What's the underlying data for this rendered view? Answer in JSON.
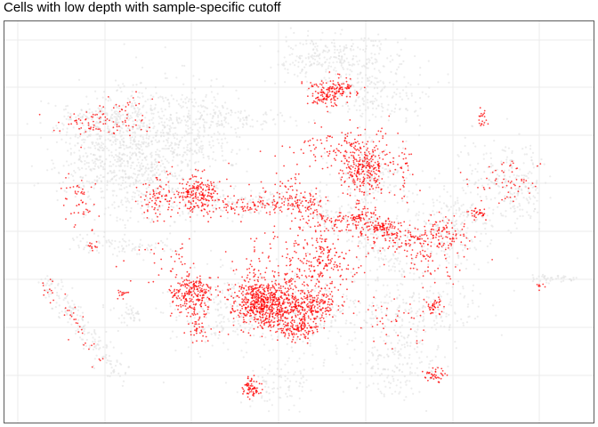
{
  "chart_data": {
    "type": "scatter",
    "title": "Cells with low depth with sample-specific cutoff",
    "xlabel": "",
    "ylabel": "",
    "grid": true,
    "tick_labels_visible": false,
    "colors": {
      "background_cells": "#dcdcdc",
      "highlighted_cells": "#ff0000",
      "grid": "#ebebeb",
      "panel_border": "#333333"
    },
    "series": [
      {
        "name": "",
        "color": "#dcdcdc",
        "role": "background",
        "clusters": [
          {
            "cx": 0.32,
            "cy": 0.27,
            "sx": 0.045,
            "sy": 0.06,
            "n": 300
          },
          {
            "cx": 0.23,
            "cy": 0.3,
            "sx": 0.045,
            "sy": 0.06,
            "n": 320
          },
          {
            "cx": 0.15,
            "cy": 0.35,
            "sx": 0.035,
            "sy": 0.05,
            "n": 220
          },
          {
            "cx": 0.24,
            "cy": 0.4,
            "sx": 0.05,
            "sy": 0.06,
            "n": 260
          },
          {
            "cx": 0.63,
            "cy": 0.17,
            "sx": 0.045,
            "sy": 0.05,
            "n": 220
          },
          {
            "cx": 0.62,
            "cy": 0.39,
            "sx": 0.03,
            "sy": 0.04,
            "n": 160
          },
          {
            "cx": 0.75,
            "cy": 0.5,
            "sx": 0.035,
            "sy": 0.05,
            "n": 200
          },
          {
            "cx": 0.7,
            "cy": 0.72,
            "sx": 0.06,
            "sy": 0.06,
            "n": 260
          },
          {
            "cx": 0.66,
            "cy": 0.86,
            "sx": 0.035,
            "sy": 0.04,
            "n": 150
          },
          {
            "cx": 0.36,
            "cy": 0.72,
            "sx": 0.045,
            "sy": 0.05,
            "n": 200
          },
          {
            "cx": 0.51,
            "cy": 0.73,
            "sx": 0.05,
            "sy": 0.05,
            "n": 220
          },
          {
            "cx": 0.57,
            "cy": 0.09,
            "sx": 0.04,
            "sy": 0.03,
            "n": 140
          },
          {
            "cx": 0.52,
            "cy": 0.09,
            "sx": 0.03,
            "sy": 0.03,
            "n": 100
          },
          {
            "cx": 0.84,
            "cy": 0.38,
            "sx": 0.035,
            "sy": 0.05,
            "n": 140
          },
          {
            "cx": 0.88,
            "cy": 0.42,
            "sx": 0.02,
            "sy": 0.05,
            "n": 100
          },
          {
            "cx": 0.18,
            "cy": 0.26,
            "sx": 0.05,
            "sy": 0.02,
            "n": 90
          },
          {
            "cx": 0.16,
            "cy": 0.24,
            "sx": 0.04,
            "sy": 0.02,
            "n": 80
          },
          {
            "cx": 0.39,
            "cy": 0.24,
            "sx": 0.06,
            "sy": 0.015,
            "n": 90
          },
          {
            "cx": 0.47,
            "cy": 0.9,
            "sx": 0.03,
            "sy": 0.03,
            "n": 90
          },
          {
            "cx": 0.21,
            "cy": 0.73,
            "sx": 0.015,
            "sy": 0.02,
            "n": 40
          },
          {
            "cx": 0.22,
            "cy": 0.19,
            "sx": 0.015,
            "sy": 0.04,
            "n": 40
          }
        ],
        "streaks": [
          {
            "x1": 0.06,
            "y1": 0.63,
            "x2": 0.2,
            "y2": 0.88,
            "n": 180,
            "w": 0.012
          },
          {
            "x1": 0.12,
            "y1": 0.55,
            "x2": 0.3,
            "y2": 0.57,
            "n": 90,
            "w": 0.012
          },
          {
            "x1": 0.3,
            "y1": 0.45,
            "x2": 0.55,
            "y2": 0.45,
            "n": 160,
            "w": 0.018
          },
          {
            "x1": 0.52,
            "y1": 0.47,
            "x2": 0.72,
            "y2": 0.56,
            "n": 140,
            "w": 0.018
          },
          {
            "x1": 0.9,
            "y1": 0.64,
            "x2": 0.96,
            "y2": 0.64,
            "n": 40,
            "w": 0.006
          },
          {
            "x1": 0.6,
            "y1": 0.55,
            "x2": 0.68,
            "y2": 0.62,
            "n": 60,
            "w": 0.015
          }
        ]
      },
      {
        "name": "",
        "color": "#ff0000",
        "role": "highlight",
        "clusters": [
          {
            "cx": 0.45,
            "cy": 0.71,
            "sx": 0.025,
            "sy": 0.03,
            "n": 420
          },
          {
            "cx": 0.42,
            "cy": 0.69,
            "sx": 0.02,
            "sy": 0.025,
            "n": 200
          },
          {
            "cx": 0.32,
            "cy": 0.68,
            "sx": 0.018,
            "sy": 0.025,
            "n": 240
          },
          {
            "cx": 0.52,
            "cy": 0.71,
            "sx": 0.022,
            "sy": 0.02,
            "n": 200
          },
          {
            "cx": 0.5,
            "cy": 0.76,
            "sx": 0.018,
            "sy": 0.015,
            "n": 150
          },
          {
            "cx": 0.61,
            "cy": 0.37,
            "sx": 0.022,
            "sy": 0.03,
            "n": 260
          },
          {
            "cx": 0.33,
            "cy": 0.43,
            "sx": 0.02,
            "sy": 0.025,
            "n": 220
          },
          {
            "cx": 0.56,
            "cy": 0.17,
            "sx": 0.02,
            "sy": 0.015,
            "n": 120
          },
          {
            "cx": 0.54,
            "cy": 0.19,
            "sx": 0.012,
            "sy": 0.012,
            "n": 60
          },
          {
            "cx": 0.42,
            "cy": 0.91,
            "sx": 0.007,
            "sy": 0.012,
            "n": 70
          },
          {
            "cx": 0.73,
            "cy": 0.88,
            "sx": 0.01,
            "sy": 0.008,
            "n": 40
          },
          {
            "cx": 0.73,
            "cy": 0.71,
            "sx": 0.008,
            "sy": 0.01,
            "n": 40
          },
          {
            "cx": 0.8,
            "cy": 0.48,
            "sx": 0.006,
            "sy": 0.008,
            "n": 20
          },
          {
            "cx": 0.75,
            "cy": 0.53,
            "sx": 0.02,
            "sy": 0.02,
            "n": 80
          },
          {
            "cx": 0.81,
            "cy": 0.24,
            "sx": 0.004,
            "sy": 0.012,
            "n": 20
          },
          {
            "cx": 0.64,
            "cy": 0.51,
            "sx": 0.01,
            "sy": 0.005,
            "n": 30
          },
          {
            "cx": 0.6,
            "cy": 0.49,
            "sx": 0.006,
            "sy": 0.005,
            "n": 20
          },
          {
            "cx": 0.2,
            "cy": 0.68,
            "sx": 0.005,
            "sy": 0.006,
            "n": 15
          },
          {
            "cx": 0.91,
            "cy": 0.66,
            "sx": 0.004,
            "sy": 0.004,
            "n": 8
          },
          {
            "cx": 0.15,
            "cy": 0.56,
            "sx": 0.004,
            "sy": 0.008,
            "n": 12
          },
          {
            "cx": 0.81,
            "cy": 0.48,
            "sx": 0.004,
            "sy": 0.004,
            "n": 10
          },
          {
            "cx": 0.26,
            "cy": 0.44,
            "sx": 0.015,
            "sy": 0.03,
            "n": 80
          },
          {
            "cx": 0.48,
            "cy": 0.63,
            "sx": 0.05,
            "sy": 0.05,
            "n": 220
          },
          {
            "cx": 0.55,
            "cy": 0.59,
            "sx": 0.03,
            "sy": 0.03,
            "n": 80
          },
          {
            "cx": 0.33,
            "cy": 0.76,
            "sx": 0.01,
            "sy": 0.02,
            "n": 40
          },
          {
            "cx": 0.18,
            "cy": 0.26,
            "sx": 0.05,
            "sy": 0.015,
            "n": 60
          },
          {
            "cx": 0.85,
            "cy": 0.41,
            "sx": 0.03,
            "sy": 0.03,
            "n": 60
          },
          {
            "cx": 0.13,
            "cy": 0.45,
            "sx": 0.015,
            "sy": 0.04,
            "n": 50
          },
          {
            "cx": 0.68,
            "cy": 0.37,
            "sx": 0.01,
            "sy": 0.03,
            "n": 30
          },
          {
            "cx": 0.58,
            "cy": 0.31,
            "sx": 0.04,
            "sy": 0.03,
            "n": 120
          },
          {
            "cx": 0.65,
            "cy": 0.54,
            "sx": 0.03,
            "sy": 0.02,
            "n": 60
          },
          {
            "cx": 0.66,
            "cy": 0.74,
            "sx": 0.03,
            "sy": 0.03,
            "n": 40
          },
          {
            "cx": 0.72,
            "cy": 0.58,
            "sx": 0.03,
            "sy": 0.04,
            "n": 80
          },
          {
            "cx": 0.28,
            "cy": 0.58,
            "sx": 0.03,
            "sy": 0.04,
            "n": 40
          }
        ],
        "streaks": [
          {
            "x1": 0.38,
            "y1": 0.46,
            "x2": 0.53,
            "y2": 0.45,
            "n": 160,
            "w": 0.012
          },
          {
            "x1": 0.52,
            "y1": 0.48,
            "x2": 0.72,
            "y2": 0.55,
            "n": 160,
            "w": 0.012
          },
          {
            "x1": 0.11,
            "y1": 0.26,
            "x2": 0.24,
            "y2": 0.19,
            "n": 40,
            "w": 0.012
          },
          {
            "x1": 0.07,
            "y1": 0.65,
            "x2": 0.17,
            "y2": 0.85,
            "n": 40,
            "w": 0.01
          },
          {
            "x1": 0.48,
            "y1": 0.38,
            "x2": 0.56,
            "y2": 0.64,
            "n": 120,
            "w": 0.02
          },
          {
            "x1": 0.6,
            "y1": 0.46,
            "x2": 0.66,
            "y2": 0.52,
            "n": 40,
            "w": 0.01
          }
        ]
      }
    ]
  }
}
